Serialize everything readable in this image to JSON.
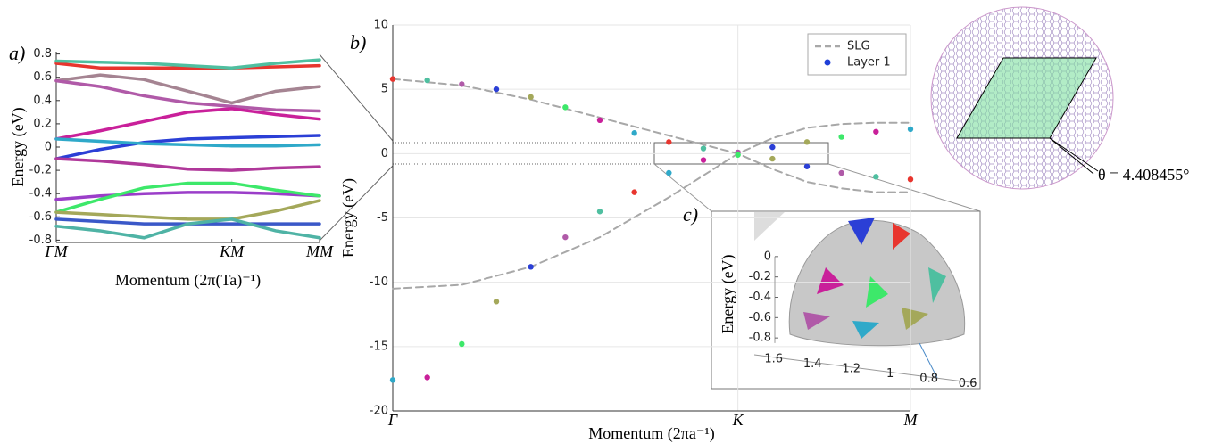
{
  "chart_data": [
    {
      "type": "line",
      "panel_label": "a)",
      "ylabel": "Energy (eV)",
      "xlabel": "Momentum (2π(Ta)⁻¹)",
      "x": [
        0,
        0.25,
        0.5,
        0.75,
        1,
        1.25,
        1.5
      ],
      "xlim": [
        0,
        1.5
      ],
      "xticks": [
        {
          "value": 0,
          "label": "ΓM"
        },
        {
          "value": 1,
          "label": "KM"
        },
        {
          "value": 1.5,
          "label": "MM"
        }
      ],
      "ylim": [
        -0.82,
        0.82
      ],
      "yticks": [
        -0.8,
        -0.6,
        -0.4,
        -0.2,
        0,
        0.2,
        0.4,
        0.6,
        0.8
      ],
      "series": [
        {
          "color": "#e8352e",
          "values": [
            0.72,
            0.68,
            0.68,
            0.68,
            0.68,
            0.69,
            0.7
          ]
        },
        {
          "color": "#4fbfa0",
          "values": [
            0.74,
            0.73,
            0.72,
            0.7,
            0.68,
            0.72,
            0.75
          ]
        },
        {
          "color": "#a58492",
          "values": [
            0.57,
            0.62,
            0.58,
            0.48,
            0.38,
            0.48,
            0.52
          ]
        },
        {
          "color": "#b05aa8",
          "values": [
            0.57,
            0.52,
            0.44,
            0.38,
            0.35,
            0.32,
            0.31
          ]
        },
        {
          "color": "#c9209a",
          "values": [
            0.07,
            0.14,
            0.22,
            0.3,
            0.33,
            0.28,
            0.24
          ]
        },
        {
          "color": "#2b3fd6",
          "values": [
            -0.1,
            -0.02,
            0.04,
            0.07,
            0.08,
            0.09,
            0.1
          ]
        },
        {
          "color": "#2fa9c9",
          "values": [
            0.07,
            0.05,
            0.03,
            0.02,
            0.01,
            0.01,
            0.02
          ]
        },
        {
          "color": "#b0389a",
          "values": [
            -0.1,
            -0.12,
            -0.15,
            -0.19,
            -0.2,
            -0.18,
            -0.17
          ]
        },
        {
          "color": "#9b3ec9",
          "values": [
            -0.45,
            -0.42,
            -0.4,
            -0.39,
            -0.39,
            -0.4,
            -0.42
          ]
        },
        {
          "color": "#3de86a",
          "values": [
            -0.56,
            -0.45,
            -0.35,
            -0.31,
            -0.31,
            -0.37,
            -0.42
          ]
        },
        {
          "color": "#a4a85a",
          "values": [
            -0.56,
            -0.58,
            -0.6,
            -0.62,
            -0.62,
            -0.55,
            -0.46
          ]
        },
        {
          "color": "#3a58c8",
          "values": [
            -0.62,
            -0.64,
            -0.66,
            -0.66,
            -0.66,
            -0.66,
            -0.66
          ]
        },
        {
          "color": "#4fb3a5",
          "values": [
            -0.68,
            -0.72,
            -0.78,
            -0.66,
            -0.62,
            -0.72,
            -0.78
          ]
        }
      ]
    },
    {
      "type": "line",
      "panel_label": "b)",
      "ylabel": "Energy (eV)",
      "xlabel": "Momentum (2πa⁻¹)",
      "xlim": [
        0,
        1.5
      ],
      "xticks": [
        {
          "value": 0,
          "label": "Γ"
        },
        {
          "value": 1,
          "label": "K"
        },
        {
          "value": 1.5,
          "label": "M"
        }
      ],
      "ylim": [
        -20,
        10
      ],
      "yticks": [
        -20,
        -15,
        -10,
        -5,
        0,
        5,
        10
      ],
      "grid": true,
      "legend": "upper right",
      "series": [
        {
          "name": "SLG",
          "color": "#a8a8a8",
          "line_style": "dashed",
          "x": [
            0,
            0.2,
            0.4,
            0.6,
            0.8,
            1.0,
            1.1,
            1.2,
            1.3,
            1.4,
            1.5,
            1.5,
            0,
            0.2,
            0.4,
            0.6,
            0.8,
            1.0,
            1.1,
            1.2,
            1.3,
            1.4,
            1.5
          ],
          "values": [
            5.8,
            5.3,
            4.2,
            2.8,
            1.4,
            0,
            -1.2,
            -2.2,
            -2.7,
            -3.0,
            -3.0,
            null,
            -10.5,
            -10.2,
            -8.8,
            -6.5,
            -3.4,
            0,
            1.2,
            2.0,
            2.3,
            2.4,
            2.4
          ]
        },
        {
          "name": "Layer 1",
          "color": "#1f3fd8",
          "marker": "o",
          "palette": [
            "#e8352e",
            "#4fbfa0",
            "#b05aa8",
            "#2b3fd6",
            "#a4a85a",
            "#3de86a",
            "#c9209a",
            "#2fa9c9"
          ],
          "x": [
            0,
            0.1,
            0.2,
            0.3,
            0.4,
            0.5,
            0.6,
            0.7,
            0.8,
            0.9,
            1.0,
            1.1,
            1.2,
            1.3,
            1.4,
            1.5,
            1.5,
            1.4,
            1.3,
            1.2,
            1.1,
            1.0,
            0.9,
            0.8,
            0.7,
            0.6,
            0.5,
            0.4,
            0.3,
            0.2,
            0.1,
            0.0
          ],
          "values": [
            5.8,
            5.7,
            5.4,
            5.0,
            4.4,
            3.6,
            2.6,
            1.6,
            0.9,
            0.4,
            0.1,
            0.5,
            0.9,
            1.3,
            1.7,
            1.9,
            -2.0,
            -1.8,
            -1.5,
            -1.0,
            -0.4,
            -0.1,
            -0.5,
            -1.5,
            -3.0,
            -4.5,
            -6.5,
            -8.8,
            -11.5,
            -14.8,
            -17.4,
            -17.6
          ]
        }
      ]
    },
    {
      "type": "surface",
      "panel_label": "c)",
      "ylabel": "Energy (eV)",
      "ylim": [
        -0.85,
        0
      ],
      "yticks": [
        0,
        -0.2,
        -0.4,
        -0.6,
        -0.8
      ],
      "xlim": [
        1.7,
        0.55
      ],
      "xticks": [
        1.6,
        1.4,
        1.2,
        1,
        0.8,
        0.6
      ]
    }
  ],
  "moire": {
    "label": "θ = 4.408455°"
  }
}
